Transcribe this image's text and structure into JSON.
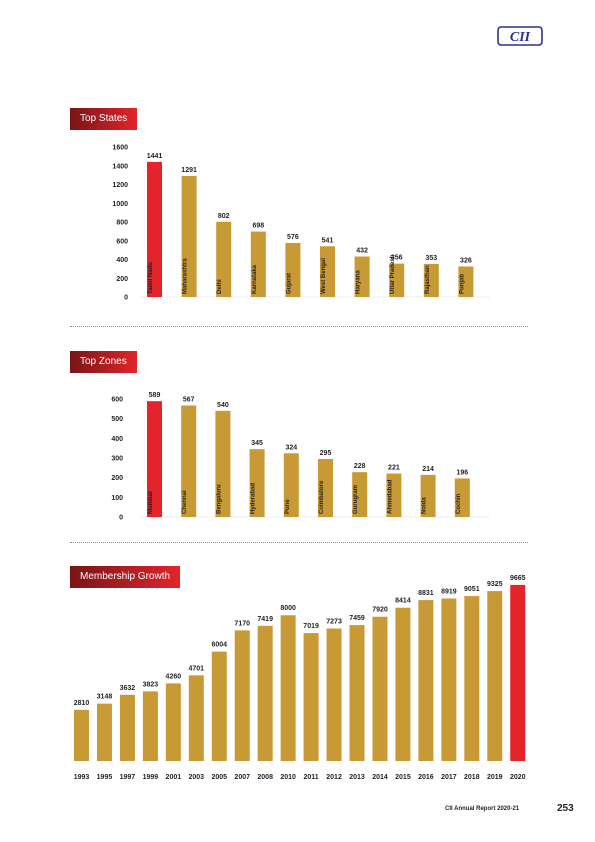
{
  "logo": {
    "text": "CII",
    "color": "#2b2f8f"
  },
  "colors": {
    "bar": "#c89a35",
    "highlight": "#e3242b",
    "axis_text": "#231f20"
  },
  "sections": {
    "states_title": "Top States",
    "zones_title": "Top Zones",
    "growth_title": "Membership Growth"
  },
  "footer": {
    "report": "CII Annual Report 2020-21",
    "page": "253"
  },
  "chart_data": [
    {
      "type": "bar",
      "title": "Top States",
      "categories": [
        "Tamil Nadu",
        "Maharashtra",
        "Delhi",
        "Karnataka",
        "Gujarat",
        "West Bengal",
        "Haryana",
        "Uttar Pradesh",
        "Rajasthan",
        "Punjab"
      ],
      "values": [
        1441,
        1291,
        802,
        698,
        576,
        541,
        432,
        356,
        353,
        326
      ],
      "highlight_index": 0,
      "ylim": [
        0,
        1600
      ],
      "yticks": [
        0,
        200,
        400,
        600,
        800,
        1000,
        1200,
        1400,
        1600
      ],
      "xlabel": "",
      "ylabel": ""
    },
    {
      "type": "bar",
      "title": "Top Zones",
      "categories": [
        "Mumbai",
        "Chennai",
        "Bengaluru",
        "Hyderabad",
        "Pune",
        "Coimbatore",
        "Gurugram",
        "Ahmedabad",
        "Noida",
        "Cochin"
      ],
      "values": [
        589,
        567,
        540,
        345,
        324,
        295,
        228,
        221,
        214,
        196
      ],
      "highlight_index": 0,
      "ylim": [
        0,
        600
      ],
      "yticks": [
        0,
        100,
        200,
        300,
        400,
        500,
        600
      ],
      "xlabel": "",
      "ylabel": ""
    },
    {
      "type": "bar",
      "title": "Membership Growth",
      "categories": [
        "1993",
        "1995",
        "1997",
        "1999",
        "2001",
        "2003",
        "2005",
        "2007",
        "2008",
        "2010",
        "2011",
        "2012",
        "2013",
        "2014",
        "2015",
        "2016",
        "2017",
        "2018",
        "2019",
        "2020"
      ],
      "values": [
        2810,
        3148,
        3632,
        3823,
        4260,
        4701,
        6004,
        7170,
        7419,
        8000,
        7019,
        7273,
        7459,
        7920,
        8414,
        8831,
        8919,
        9051,
        9325,
        9665
      ],
      "highlight_index": 19,
      "ylim": [
        0,
        10000
      ],
      "xlabel": "",
      "ylabel": ""
    }
  ]
}
